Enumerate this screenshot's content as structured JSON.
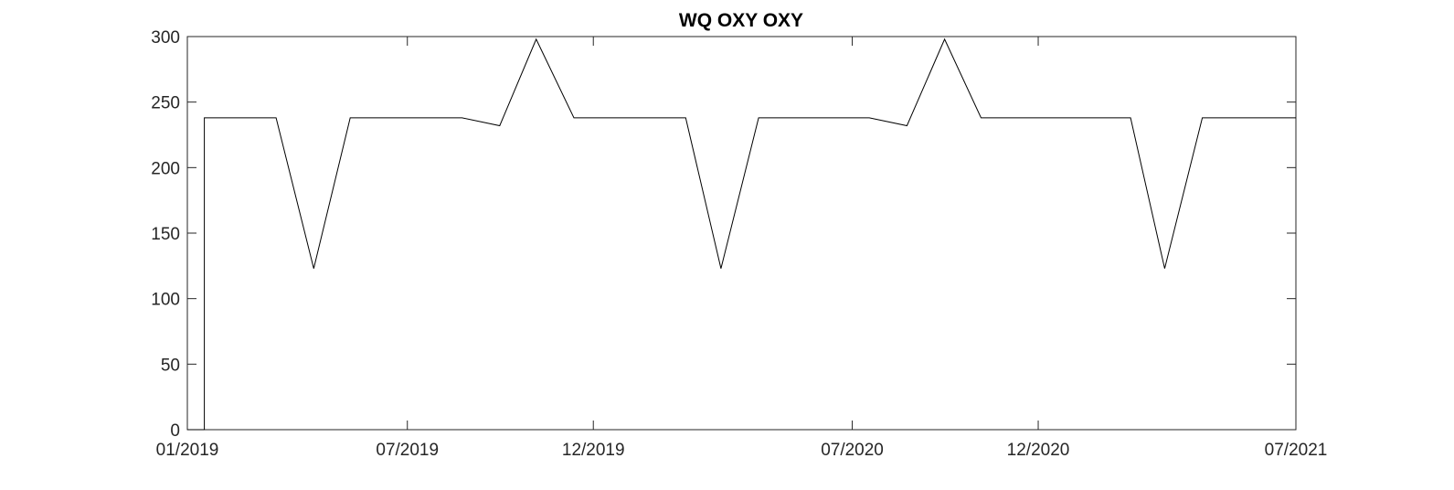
{
  "chart_data": {
    "type": "line",
    "title": "WQ OXY OXY",
    "xlabel": "",
    "ylabel": "",
    "xlim": [
      "2019-01-01",
      "2021-07-01"
    ],
    "ylim": [
      0,
      300
    ],
    "x_ticks": [
      {
        "date": "2019-01-01",
        "label": "01/2019"
      },
      {
        "date": "2019-07-01",
        "label": "07/2019"
      },
      {
        "date": "2019-12-01",
        "label": "12/2019"
      },
      {
        "date": "2020-07-01",
        "label": "07/2020"
      },
      {
        "date": "2020-12-01",
        "label": "12/2020"
      },
      {
        "date": "2021-07-01",
        "label": "07/2021"
      }
    ],
    "y_ticks": [
      0,
      50,
      100,
      150,
      200,
      250,
      300
    ],
    "grid": false,
    "legend": "none",
    "line_color": "#000000",
    "series": [
      {
        "x": [
          "2019-01-01",
          "2019-01-15",
          "2019-01-15",
          "2019-03-15",
          "2019-04-15",
          "2019-05-15",
          "2019-08-15",
          "2019-09-15",
          "2019-10-15",
          "2019-11-15",
          "2020-02-15",
          "2020-03-15",
          "2020-04-15",
          "2020-07-15",
          "2020-08-15",
          "2020-09-15",
          "2020-10-15",
          "2021-02-15",
          "2021-03-15",
          "2021-04-15",
          "2021-07-01"
        ],
        "y": [
          0,
          0,
          238,
          238,
          123,
          238,
          238,
          232,
          298,
          238,
          238,
          123,
          238,
          238,
          232,
          298,
          238,
          238,
          123,
          238,
          238
        ]
      }
    ]
  }
}
